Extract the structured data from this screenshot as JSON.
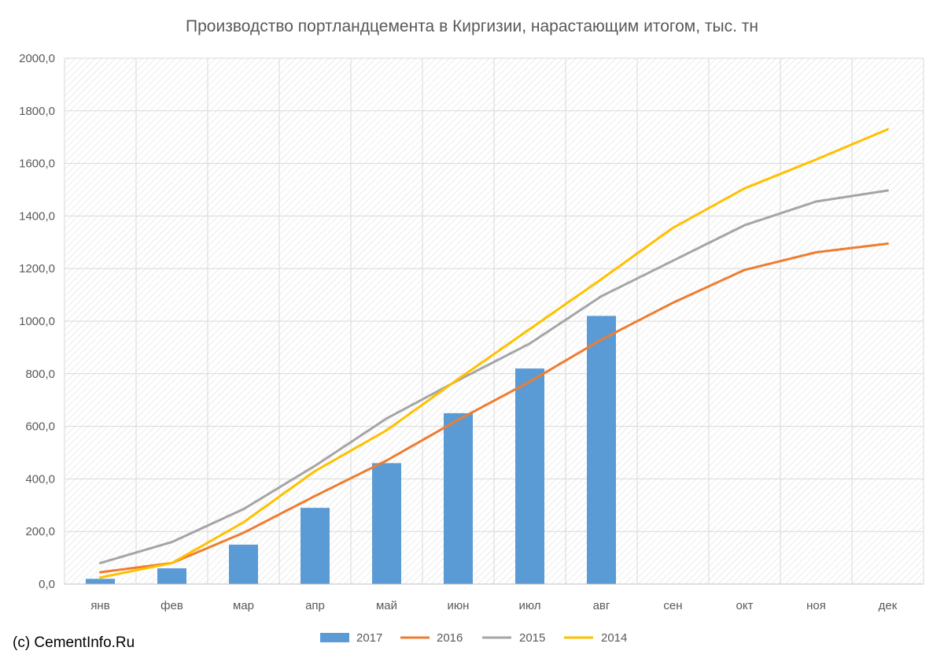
{
  "chart_data": {
    "type": "bar",
    "title": "Производство портландцемента в Киргизии, нарастающим итогом, тыс. тн",
    "categories": [
      "янв",
      "фев",
      "мар",
      "апр",
      "май",
      "июн",
      "июл",
      "авг",
      "сен",
      "окт",
      "ноя",
      "дек"
    ],
    "y_ticks": [
      "0,0",
      "200,0",
      "400,0",
      "600,0",
      "800,0",
      "1000,0",
      "1200,0",
      "1400,0",
      "1600,0",
      "1800,0",
      "2000,0"
    ],
    "ylim": [
      0,
      2000
    ],
    "grid": true,
    "legend_position": "bottom",
    "series": [
      {
        "name": "2017",
        "kind": "bar",
        "color": "#5b9bd5",
        "values": [
          20,
          60,
          150,
          290,
          460,
          650,
          820,
          1020,
          null,
          null,
          null,
          null
        ]
      },
      {
        "name": "2016",
        "kind": "line",
        "color": "#ed7d31",
        "values": [
          45,
          80,
          195,
          335,
          470,
          625,
          770,
          930,
          1070,
          1195,
          1262,
          1295
        ]
      },
      {
        "name": "2015",
        "kind": "line",
        "color": "#a5a5a5",
        "values": [
          80,
          160,
          285,
          450,
          630,
          775,
          915,
          1095,
          1230,
          1365,
          1455,
          1497
        ]
      },
      {
        "name": "2014",
        "kind": "line",
        "color": "#ffc000",
        "values": [
          25,
          80,
          235,
          430,
          585,
          780,
          970,
          1160,
          1355,
          1505,
          1615,
          1730
        ]
      }
    ]
  },
  "footer": {
    "credit": "(c) CementInfo.Ru"
  }
}
